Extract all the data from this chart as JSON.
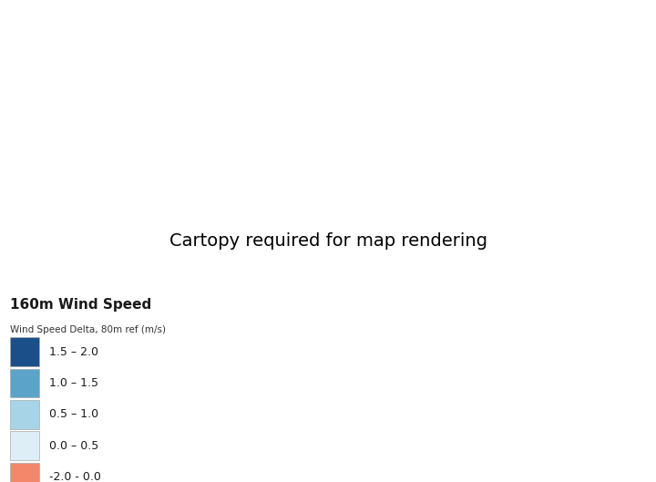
{
  "title": "160m Wind Speed",
  "subtitle": "Wind Speed Delta, 80m ref (m/s)",
  "legend_labels": [
    "1.5 – 2.0",
    "1.0 – 1.5",
    "0.5 – 1.0",
    "0.0 – 0.5",
    "-2.0 - 0.0"
  ],
  "legend_colors": [
    "#1a4f8a",
    "#5ba3c9",
    "#a8d4e8",
    "#ddeef7",
    "#f4876a"
  ],
  "background_color": "#ffffff",
  "figsize": [
    7.2,
    5.29
  ],
  "dpi": 100,
  "map_background": "#f0f7ff",
  "color_breaks": [
    -2.0,
    0.0,
    0.5,
    1.0,
    1.5,
    2.0
  ],
  "colors_map": [
    "#f4876a",
    "#ddeef7",
    "#a8d4e8",
    "#5ba3c9",
    "#1a4f8a"
  ],
  "seed": 42,
  "noise_scale": 0.3
}
